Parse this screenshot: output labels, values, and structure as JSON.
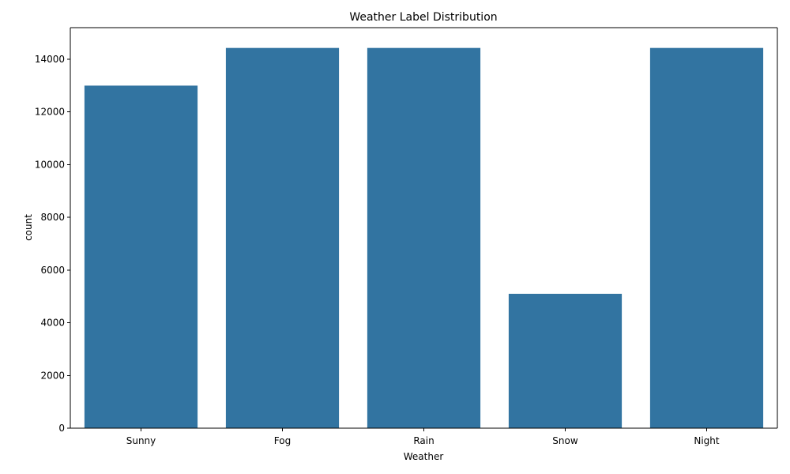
{
  "chart_data": {
    "type": "bar",
    "title": "Weather Label Distribution",
    "xlabel": "Weather",
    "ylabel": "count",
    "categories": [
      "Sunny",
      "Fog",
      "Rain",
      "Snow",
      "Night"
    ],
    "values": [
      13000,
      14430,
      14430,
      5100,
      14430
    ],
    "ylim": [
      0,
      15200
    ],
    "yticks": [
      0,
      2000,
      4000,
      6000,
      8000,
      10000,
      12000,
      14000
    ],
    "bar_color": "#3274a1",
    "grid": false,
    "legend": "none"
  }
}
